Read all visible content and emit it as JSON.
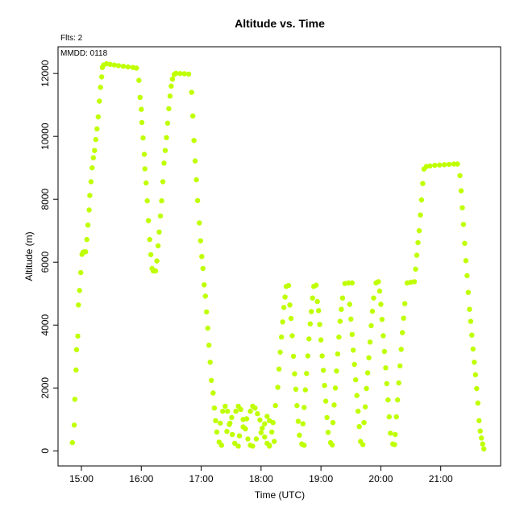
{
  "chart_data": {
    "type": "scatter",
    "title": "Altitude  vs. Time",
    "xlabel": "Time (UTC)",
    "ylabel": "Altitude (m)",
    "annotations": [
      "Flts: 2",
      "MMDD: 0118"
    ],
    "x_ticks": [
      {
        "label": "15:00",
        "value": 15.0
      },
      {
        "label": "16:00",
        "value": 16.0
      },
      {
        "label": "17:00",
        "value": 17.0
      },
      {
        "label": "18:00",
        "value": 18.0
      },
      {
        "label": "19:00",
        "value": 19.0
      },
      {
        "label": "20:00",
        "value": 20.0
      },
      {
        "label": "21:00",
        "value": 21.0
      }
    ],
    "y_ticks": [
      0,
      2000,
      4000,
      6000,
      8000,
      10000,
      12000
    ],
    "xlim": [
      14.61,
      22.0
    ],
    "ylim": [
      -480,
      12850
    ],
    "grid": false,
    "point_color": "#bfff00",
    "series": [
      {
        "points": [
          [
            14.85,
            260
          ],
          [
            14.88,
            820
          ],
          [
            14.89,
            1640
          ],
          [
            14.91,
            2570
          ],
          [
            14.92,
            3220
          ],
          [
            14.94,
            3650
          ],
          [
            14.95,
            4640
          ],
          [
            14.97,
            5100
          ],
          [
            14.99,
            5670
          ],
          [
            15.01,
            6250
          ],
          [
            15.03,
            6320
          ],
          [
            15.05,
            6330
          ],
          [
            15.07,
            6330
          ],
          [
            15.09,
            6720
          ],
          [
            15.11,
            7180
          ],
          [
            15.13,
            7660
          ],
          [
            15.14,
            8120
          ],
          [
            15.16,
            8560
          ],
          [
            15.18,
            9000
          ],
          [
            15.2,
            9320
          ],
          [
            15.22,
            9550
          ],
          [
            15.24,
            9900
          ],
          [
            15.26,
            10240
          ],
          [
            15.28,
            10620
          ],
          [
            15.3,
            11120
          ],
          [
            15.32,
            11560
          ],
          [
            15.34,
            11890
          ],
          [
            15.35,
            12190
          ],
          [
            15.37,
            12270
          ],
          [
            15.42,
            12310
          ],
          [
            15.48,
            12290
          ],
          [
            15.55,
            12270
          ],
          [
            15.62,
            12250
          ],
          [
            15.7,
            12230
          ],
          [
            15.78,
            12210
          ],
          [
            15.86,
            12190
          ],
          [
            15.92,
            12170
          ],
          [
            15.96,
            11780
          ],
          [
            15.98,
            11240
          ],
          [
            16.0,
            10860
          ],
          [
            16.01,
            10440
          ],
          [
            16.03,
            9950
          ],
          [
            16.05,
            9430
          ],
          [
            16.06,
            8970
          ],
          [
            16.08,
            8520
          ],
          [
            16.1,
            7950
          ],
          [
            16.12,
            7320
          ],
          [
            16.14,
            6720
          ],
          [
            16.16,
            6240
          ],
          [
            16.18,
            5800
          ],
          [
            16.2,
            5720
          ],
          [
            16.22,
            5720
          ],
          [
            16.24,
            5720
          ],
          [
            16.26,
            6040
          ],
          [
            16.28,
            6520
          ],
          [
            16.3,
            6960
          ],
          [
            16.32,
            7470
          ],
          [
            16.34,
            7950
          ],
          [
            16.36,
            8560
          ],
          [
            16.38,
            9150
          ],
          [
            16.4,
            9550
          ],
          [
            16.42,
            9960
          ],
          [
            16.44,
            10420
          ],
          [
            16.46,
            10880
          ],
          [
            16.48,
            11280
          ],
          [
            16.5,
            11600
          ],
          [
            16.52,
            11820
          ],
          [
            16.55,
            11970
          ],
          [
            16.58,
            12010
          ],
          [
            16.65,
            12000
          ],
          [
            16.72,
            11990
          ],
          [
            16.79,
            11980
          ],
          [
            16.84,
            11400
          ],
          [
            16.86,
            10650
          ],
          [
            16.88,
            9870
          ],
          [
            16.9,
            9220
          ],
          [
            16.92,
            8620
          ],
          [
            16.94,
            7960
          ],
          [
            16.97,
            7250
          ],
          [
            16.99,
            6680
          ],
          [
            17.01,
            6180
          ],
          [
            17.03,
            5800
          ],
          [
            17.05,
            5280
          ],
          [
            17.07,
            4920
          ],
          [
            17.09,
            4420
          ],
          [
            17.11,
            3900
          ],
          [
            17.13,
            3360
          ],
          [
            17.15,
            2820
          ],
          [
            17.17,
            2240
          ],
          [
            17.2,
            1840
          ],
          [
            17.22,
            1360
          ],
          [
            17.24,
            960
          ],
          [
            17.26,
            600
          ],
          [
            17.3,
            280
          ],
          [
            17.34,
            180
          ],
          [
            17.32,
            880
          ],
          [
            17.36,
            1260
          ],
          [
            17.4,
            1420
          ],
          [
            17.44,
            1260
          ],
          [
            17.48,
            880
          ],
          [
            17.52,
            520
          ],
          [
            17.56,
            240
          ],
          [
            17.62,
            150
          ],
          [
            17.43,
            620
          ],
          [
            17.47,
            840
          ],
          [
            17.51,
            1060
          ],
          [
            17.58,
            1260
          ],
          [
            17.62,
            1420
          ],
          [
            17.66,
            1320
          ],
          [
            17.7,
            1000
          ],
          [
            17.74,
            700
          ],
          [
            17.78,
            380
          ],
          [
            17.82,
            180
          ],
          [
            17.86,
            150
          ],
          [
            17.64,
            480
          ],
          [
            17.7,
            760
          ],
          [
            17.76,
            1020
          ],
          [
            17.82,
            1260
          ],
          [
            17.86,
            1420
          ],
          [
            17.9,
            1360
          ],
          [
            17.94,
            1180
          ],
          [
            17.98,
            980
          ],
          [
            18.02,
            720
          ],
          [
            18.06,
            440
          ],
          [
            18.1,
            240
          ],
          [
            18.14,
            150
          ],
          [
            17.92,
            380
          ],
          [
            18.0,
            580
          ],
          [
            18.06,
            860
          ],
          [
            18.1,
            1100
          ],
          [
            18.14,
            960
          ],
          [
            18.18,
            600
          ],
          [
            18.22,
            300
          ],
          [
            18.14,
            180
          ],
          [
            18.2,
            900
          ],
          [
            18.24,
            1440
          ],
          [
            18.28,
            2020
          ],
          [
            18.3,
            2600
          ],
          [
            18.32,
            3140
          ],
          [
            18.34,
            3620
          ],
          [
            18.36,
            4100
          ],
          [
            18.38,
            4560
          ],
          [
            18.4,
            4890
          ],
          [
            18.42,
            5230
          ],
          [
            18.46,
            5260
          ],
          [
            18.48,
            4640
          ],
          [
            18.5,
            4210
          ],
          [
            18.52,
            3660
          ],
          [
            18.54,
            3010
          ],
          [
            18.56,
            2450
          ],
          [
            18.58,
            1960
          ],
          [
            18.6,
            1440
          ],
          [
            18.62,
            940
          ],
          [
            18.64,
            500
          ],
          [
            18.68,
            220
          ],
          [
            18.72,
            180
          ],
          [
            18.7,
            860
          ],
          [
            18.72,
            1380
          ],
          [
            18.74,
            1940
          ],
          [
            18.76,
            2460
          ],
          [
            18.78,
            3020
          ],
          [
            18.8,
            3560
          ],
          [
            18.82,
            4040
          ],
          [
            18.84,
            4430
          ],
          [
            18.86,
            4860
          ],
          [
            18.88,
            5230
          ],
          [
            18.92,
            5270
          ],
          [
            18.94,
            4750
          ],
          [
            18.96,
            4460
          ],
          [
            18.98,
            4020
          ],
          [
            19.0,
            3530
          ],
          [
            19.02,
            3020
          ],
          [
            19.04,
            2560
          ],
          [
            19.06,
            2080
          ],
          [
            19.08,
            1580
          ],
          [
            19.1,
            1060
          ],
          [
            19.12,
            590
          ],
          [
            19.16,
            260
          ],
          [
            19.19,
            190
          ],
          [
            19.2,
            900
          ],
          [
            19.22,
            1460
          ],
          [
            19.24,
            2000
          ],
          [
            19.26,
            2540
          ],
          [
            19.28,
            3080
          ],
          [
            19.3,
            3620
          ],
          [
            19.32,
            4120
          ],
          [
            19.34,
            4500
          ],
          [
            19.36,
            4860
          ],
          [
            19.4,
            5320
          ],
          [
            19.46,
            5340
          ],
          [
            19.52,
            5340
          ],
          [
            19.48,
            4660
          ],
          [
            19.5,
            4190
          ],
          [
            19.52,
            3700
          ],
          [
            19.54,
            3200
          ],
          [
            19.56,
            2750
          ],
          [
            19.58,
            2260
          ],
          [
            19.6,
            1760
          ],
          [
            19.62,
            1260
          ],
          [
            19.64,
            770
          ],
          [
            19.66,
            300
          ],
          [
            19.7,
            200
          ],
          [
            19.72,
            900
          ],
          [
            19.74,
            1400
          ],
          [
            19.76,
            1980
          ],
          [
            19.78,
            2480
          ],
          [
            19.8,
            2960
          ],
          [
            19.82,
            3460
          ],
          [
            19.84,
            3980
          ],
          [
            19.86,
            4440
          ],
          [
            19.88,
            4860
          ],
          [
            19.92,
            5340
          ],
          [
            19.96,
            5380
          ],
          [
            19.98,
            5080
          ],
          [
            20.0,
            4660
          ],
          [
            20.02,
            4180
          ],
          [
            20.04,
            3660
          ],
          [
            20.06,
            3160
          ],
          [
            20.08,
            2640
          ],
          [
            20.1,
            2140
          ],
          [
            20.12,
            1620
          ],
          [
            20.14,
            1080
          ],
          [
            20.16,
            560
          ],
          [
            20.2,
            220
          ],
          [
            20.23,
            200
          ],
          [
            20.24,
            520
          ],
          [
            20.26,
            1080
          ],
          [
            20.28,
            1620
          ],
          [
            20.3,
            2160
          ],
          [
            20.32,
            2700
          ],
          [
            20.34,
            3230
          ],
          [
            20.36,
            3760
          ],
          [
            20.38,
            4220
          ],
          [
            20.4,
            4680
          ],
          [
            20.44,
            5340
          ],
          [
            20.5,
            5360
          ],
          [
            20.56,
            5380
          ],
          [
            20.58,
            5780
          ],
          [
            20.6,
            6220
          ],
          [
            20.62,
            6620
          ],
          [
            20.64,
            7000
          ],
          [
            20.66,
            7500
          ],
          [
            20.68,
            7980
          ],
          [
            20.7,
            8500
          ],
          [
            20.72,
            8960
          ],
          [
            20.76,
            9040
          ],
          [
            20.82,
            9060
          ],
          [
            20.9,
            9080
          ],
          [
            20.98,
            9090
          ],
          [
            21.06,
            9100
          ],
          [
            21.14,
            9110
          ],
          [
            21.22,
            9120
          ],
          [
            21.28,
            9120
          ],
          [
            21.32,
            8750
          ],
          [
            21.34,
            8270
          ],
          [
            21.36,
            7730
          ],
          [
            21.38,
            7200
          ],
          [
            21.4,
            6600
          ],
          [
            21.42,
            6050
          ],
          [
            21.44,
            5570
          ],
          [
            21.46,
            5040
          ],
          [
            21.48,
            4500
          ],
          [
            21.5,
            4120
          ],
          [
            21.52,
            3680
          ],
          [
            21.54,
            3240
          ],
          [
            21.56,
            2820
          ],
          [
            21.58,
            2420
          ],
          [
            21.6,
            1980
          ],
          [
            21.62,
            1520
          ],
          [
            21.64,
            960
          ],
          [
            21.66,
            630
          ],
          [
            21.68,
            410
          ],
          [
            21.7,
            220
          ],
          [
            21.72,
            60
          ]
        ]
      }
    ]
  }
}
